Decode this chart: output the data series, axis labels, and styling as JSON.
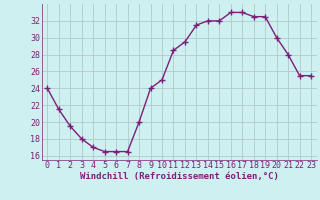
{
  "x": [
    0,
    1,
    2,
    3,
    4,
    5,
    6,
    7,
    8,
    9,
    10,
    11,
    12,
    13,
    14,
    15,
    16,
    17,
    18,
    19,
    20,
    21,
    22,
    23
  ],
  "y": [
    24.0,
    21.5,
    19.5,
    18.0,
    17.0,
    16.5,
    16.5,
    16.5,
    20.0,
    24.0,
    25.0,
    28.5,
    29.5,
    31.5,
    32.0,
    32.0,
    33.0,
    33.0,
    32.5,
    32.5,
    30.0,
    28.0,
    25.5,
    25.5
  ],
  "line_color": "#7B1F7B",
  "marker": "+",
  "marker_size": 5,
  "marker_lw": 1.0,
  "line_width": 1.0,
  "bg_color": "#cff0f0",
  "grid_color": "#b0c8c8",
  "xlabel": "Windchill (Refroidissement éolien,°C)",
  "tick_color": "#7B1F7B",
  "ylim": [
    15.5,
    34.0
  ],
  "xlim": [
    -0.5,
    23.5
  ],
  "yticks": [
    16,
    18,
    20,
    22,
    24,
    26,
    28,
    30,
    32
  ],
  "xtick_labels": [
    "0",
    "1",
    "2",
    "3",
    "4",
    "5",
    "6",
    "7",
    "8",
    "9",
    "10",
    "11",
    "12",
    "13",
    "14",
    "15",
    "16",
    "17",
    "18",
    "19",
    "20",
    "21",
    "22",
    "23"
  ],
  "tick_fontsize": 6.0,
  "label_fontsize": 6.5
}
